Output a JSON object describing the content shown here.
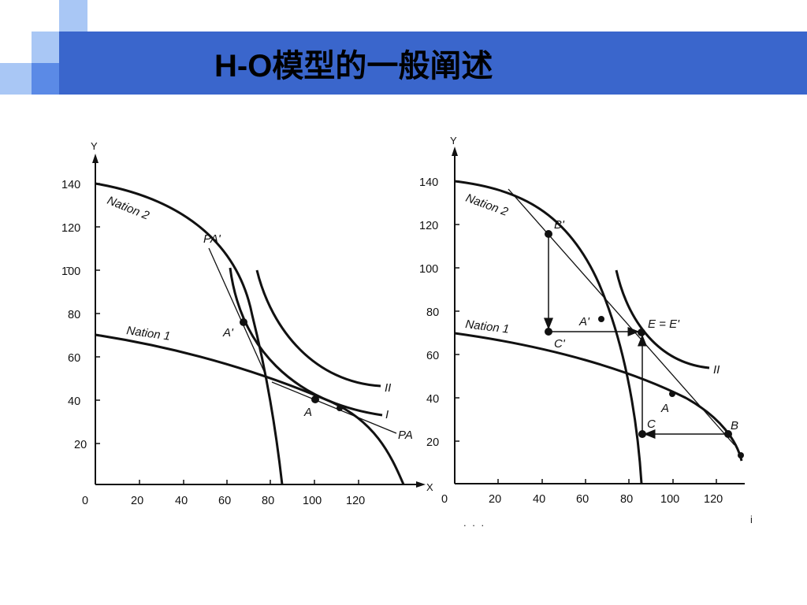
{
  "slide": {
    "title": "H-O模型的一般阐述",
    "colors": {
      "header": "#3a66cc",
      "square_dark": "#5b8ae6",
      "square_light": "#a9c7f5",
      "ink": "#111111"
    }
  },
  "stray_marks": {
    "right_mark": "i",
    "bottom_mark": ". . ."
  },
  "chart_data": [
    {
      "type": "line",
      "title": "",
      "axes": {
        "xlabel": "X",
        "ylabel": "Y",
        "xlim": [
          0,
          150
        ],
        "ylim": [
          0,
          150
        ],
        "x_ticks": [
          0,
          20,
          40,
          60,
          80,
          100,
          120
        ],
        "x_tick_labels": [
          "0",
          "20",
          "40",
          "60",
          "80",
          "100",
          "120"
        ],
        "y_ticks": [
          20,
          40,
          60,
          80,
          100,
          120,
          140
        ],
        "y_tick_labels": [
          "20",
          "40",
          "60",
          "80",
          "1̄00",
          "120",
          "140"
        ],
        "grid": false
      },
      "curves": [
        {
          "name": "Nation 2",
          "kind": "production_frontier",
          "x_intercept": 85,
          "y_intercept": 140
        },
        {
          "name": "Nation 1",
          "kind": "production_frontier",
          "x_intercept": 140,
          "y_intercept": 70
        },
        {
          "name": "I",
          "kind": "indifference_curve"
        },
        {
          "name": "II",
          "kind": "indifference_curve"
        },
        {
          "name": "P_A'",
          "kind": "price_line",
          "label": "PA'"
        },
        {
          "name": "P_A",
          "kind": "price_line",
          "label": "PA"
        }
      ],
      "points": [
        {
          "label": "A'",
          "x": 65,
          "y": 76
        },
        {
          "label": "A",
          "x": 100,
          "y": 40
        },
        {
          "label": "",
          "x": 112,
          "y": 35
        }
      ],
      "curve_labels": {
        "nation2": "Nation 2",
        "nation1": "Nation 1",
        "I": "I",
        "II": "II",
        "PA_prime": "PA'",
        "PA": "PA"
      }
    },
    {
      "type": "line",
      "title": "",
      "axes": {
        "xlabel": "",
        "ylabel": "Y",
        "xlim": [
          0,
          135
        ],
        "ylim": [
          0,
          150
        ],
        "x_ticks": [
          0,
          20,
          40,
          60,
          80,
          100,
          120
        ],
        "x_tick_labels": [
          "0",
          "20",
          "40",
          "60",
          "80",
          "100",
          "120"
        ],
        "y_ticks": [
          20,
          40,
          60,
          80,
          100,
          120,
          140
        ],
        "y_tick_labels": [
          "20",
          "40",
          "60",
          "80",
          "100",
          "120",
          "140"
        ],
        "grid": false
      },
      "curves": [
        {
          "name": "Nation 2",
          "kind": "production_frontier",
          "x_intercept": 85,
          "y_intercept": 140
        },
        {
          "name": "Nation 1",
          "kind": "production_frontier",
          "x_intercept": 135,
          "y_intercept": 70
        },
        {
          "name": "II",
          "kind": "indifference_curve"
        },
        {
          "name": "trade price line",
          "kind": "price_line"
        }
      ],
      "points": [
        {
          "label": "B'",
          "x": 43,
          "y": 115
        },
        {
          "label": "A'",
          "x": 65,
          "y": 76
        },
        {
          "label": "C'",
          "x": 43,
          "y": 70
        },
        {
          "label": "E = E'",
          "x": 85,
          "y": 70
        },
        {
          "label": "A",
          "x": 100,
          "y": 40
        },
        {
          "label": "B",
          "x": 125,
          "y": 24
        },
        {
          "label": "C",
          "x": 85,
          "y": 24
        }
      ],
      "arrows": [
        {
          "from": "B'",
          "to": "C'"
        },
        {
          "from": "C'",
          "to": "E = E'"
        },
        {
          "from": "B",
          "to": "C"
        },
        {
          "from": "C",
          "to": "E = E'"
        }
      ],
      "curve_labels": {
        "nation2": "Nation 2",
        "nation1": "Nation 1",
        "II": "II"
      }
    }
  ]
}
